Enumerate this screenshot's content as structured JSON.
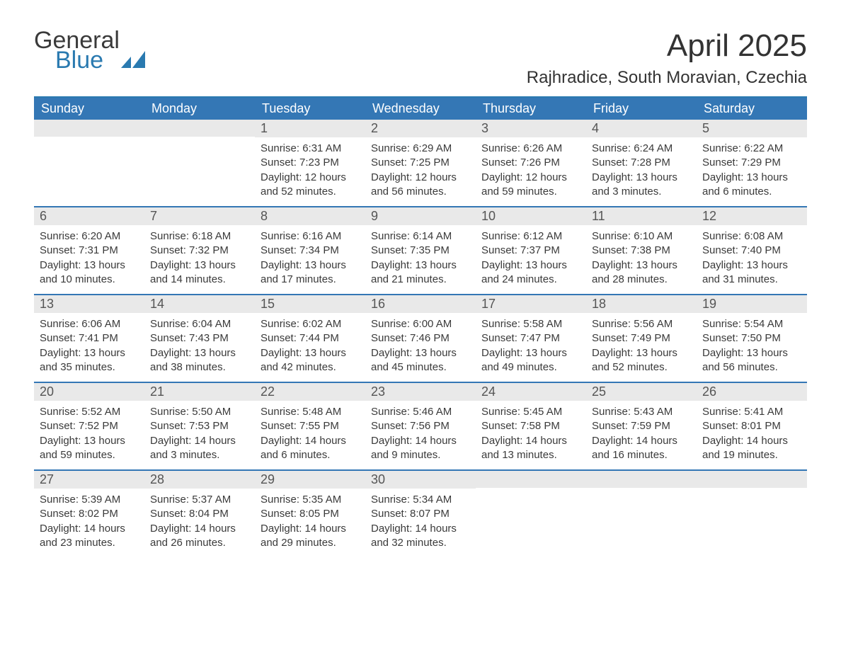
{
  "brand": {
    "general": "General",
    "blue": "Blue"
  },
  "title": {
    "month": "April 2025",
    "location": "Rajhradice, South Moravian, Czechia"
  },
  "colors": {
    "header_bg": "#3477b5",
    "header_text": "#ffffff",
    "rule": "#3477b5",
    "daynum_bg": "#e9e9e9",
    "text": "#3a3a3a",
    "brand_blue": "#2a7ab0"
  },
  "day_names": [
    "Sunday",
    "Monday",
    "Tuesday",
    "Wednesday",
    "Thursday",
    "Friday",
    "Saturday"
  ],
  "weeks": [
    [
      {
        "n": "",
        "sunrise": "",
        "sunset": "",
        "dl1": "",
        "dl2": ""
      },
      {
        "n": "",
        "sunrise": "",
        "sunset": "",
        "dl1": "",
        "dl2": ""
      },
      {
        "n": "1",
        "sunrise": "Sunrise: 6:31 AM",
        "sunset": "Sunset: 7:23 PM",
        "dl1": "Daylight: 12 hours",
        "dl2": "and 52 minutes."
      },
      {
        "n": "2",
        "sunrise": "Sunrise: 6:29 AM",
        "sunset": "Sunset: 7:25 PM",
        "dl1": "Daylight: 12 hours",
        "dl2": "and 56 minutes."
      },
      {
        "n": "3",
        "sunrise": "Sunrise: 6:26 AM",
        "sunset": "Sunset: 7:26 PM",
        "dl1": "Daylight: 12 hours",
        "dl2": "and 59 minutes."
      },
      {
        "n": "4",
        "sunrise": "Sunrise: 6:24 AM",
        "sunset": "Sunset: 7:28 PM",
        "dl1": "Daylight: 13 hours",
        "dl2": "and 3 minutes."
      },
      {
        "n": "5",
        "sunrise": "Sunrise: 6:22 AM",
        "sunset": "Sunset: 7:29 PM",
        "dl1": "Daylight: 13 hours",
        "dl2": "and 6 minutes."
      }
    ],
    [
      {
        "n": "6",
        "sunrise": "Sunrise: 6:20 AM",
        "sunset": "Sunset: 7:31 PM",
        "dl1": "Daylight: 13 hours",
        "dl2": "and 10 minutes."
      },
      {
        "n": "7",
        "sunrise": "Sunrise: 6:18 AM",
        "sunset": "Sunset: 7:32 PM",
        "dl1": "Daylight: 13 hours",
        "dl2": "and 14 minutes."
      },
      {
        "n": "8",
        "sunrise": "Sunrise: 6:16 AM",
        "sunset": "Sunset: 7:34 PM",
        "dl1": "Daylight: 13 hours",
        "dl2": "and 17 minutes."
      },
      {
        "n": "9",
        "sunrise": "Sunrise: 6:14 AM",
        "sunset": "Sunset: 7:35 PM",
        "dl1": "Daylight: 13 hours",
        "dl2": "and 21 minutes."
      },
      {
        "n": "10",
        "sunrise": "Sunrise: 6:12 AM",
        "sunset": "Sunset: 7:37 PM",
        "dl1": "Daylight: 13 hours",
        "dl2": "and 24 minutes."
      },
      {
        "n": "11",
        "sunrise": "Sunrise: 6:10 AM",
        "sunset": "Sunset: 7:38 PM",
        "dl1": "Daylight: 13 hours",
        "dl2": "and 28 minutes."
      },
      {
        "n": "12",
        "sunrise": "Sunrise: 6:08 AM",
        "sunset": "Sunset: 7:40 PM",
        "dl1": "Daylight: 13 hours",
        "dl2": "and 31 minutes."
      }
    ],
    [
      {
        "n": "13",
        "sunrise": "Sunrise: 6:06 AM",
        "sunset": "Sunset: 7:41 PM",
        "dl1": "Daylight: 13 hours",
        "dl2": "and 35 minutes."
      },
      {
        "n": "14",
        "sunrise": "Sunrise: 6:04 AM",
        "sunset": "Sunset: 7:43 PM",
        "dl1": "Daylight: 13 hours",
        "dl2": "and 38 minutes."
      },
      {
        "n": "15",
        "sunrise": "Sunrise: 6:02 AM",
        "sunset": "Sunset: 7:44 PM",
        "dl1": "Daylight: 13 hours",
        "dl2": "and 42 minutes."
      },
      {
        "n": "16",
        "sunrise": "Sunrise: 6:00 AM",
        "sunset": "Sunset: 7:46 PM",
        "dl1": "Daylight: 13 hours",
        "dl2": "and 45 minutes."
      },
      {
        "n": "17",
        "sunrise": "Sunrise: 5:58 AM",
        "sunset": "Sunset: 7:47 PM",
        "dl1": "Daylight: 13 hours",
        "dl2": "and 49 minutes."
      },
      {
        "n": "18",
        "sunrise": "Sunrise: 5:56 AM",
        "sunset": "Sunset: 7:49 PM",
        "dl1": "Daylight: 13 hours",
        "dl2": "and 52 minutes."
      },
      {
        "n": "19",
        "sunrise": "Sunrise: 5:54 AM",
        "sunset": "Sunset: 7:50 PM",
        "dl1": "Daylight: 13 hours",
        "dl2": "and 56 minutes."
      }
    ],
    [
      {
        "n": "20",
        "sunrise": "Sunrise: 5:52 AM",
        "sunset": "Sunset: 7:52 PM",
        "dl1": "Daylight: 13 hours",
        "dl2": "and 59 minutes."
      },
      {
        "n": "21",
        "sunrise": "Sunrise: 5:50 AM",
        "sunset": "Sunset: 7:53 PM",
        "dl1": "Daylight: 14 hours",
        "dl2": "and 3 minutes."
      },
      {
        "n": "22",
        "sunrise": "Sunrise: 5:48 AM",
        "sunset": "Sunset: 7:55 PM",
        "dl1": "Daylight: 14 hours",
        "dl2": "and 6 minutes."
      },
      {
        "n": "23",
        "sunrise": "Sunrise: 5:46 AM",
        "sunset": "Sunset: 7:56 PM",
        "dl1": "Daylight: 14 hours",
        "dl2": "and 9 minutes."
      },
      {
        "n": "24",
        "sunrise": "Sunrise: 5:45 AM",
        "sunset": "Sunset: 7:58 PM",
        "dl1": "Daylight: 14 hours",
        "dl2": "and 13 minutes."
      },
      {
        "n": "25",
        "sunrise": "Sunrise: 5:43 AM",
        "sunset": "Sunset: 7:59 PM",
        "dl1": "Daylight: 14 hours",
        "dl2": "and 16 minutes."
      },
      {
        "n": "26",
        "sunrise": "Sunrise: 5:41 AM",
        "sunset": "Sunset: 8:01 PM",
        "dl1": "Daylight: 14 hours",
        "dl2": "and 19 minutes."
      }
    ],
    [
      {
        "n": "27",
        "sunrise": "Sunrise: 5:39 AM",
        "sunset": "Sunset: 8:02 PM",
        "dl1": "Daylight: 14 hours",
        "dl2": "and 23 minutes."
      },
      {
        "n": "28",
        "sunrise": "Sunrise: 5:37 AM",
        "sunset": "Sunset: 8:04 PM",
        "dl1": "Daylight: 14 hours",
        "dl2": "and 26 minutes."
      },
      {
        "n": "29",
        "sunrise": "Sunrise: 5:35 AM",
        "sunset": "Sunset: 8:05 PM",
        "dl1": "Daylight: 14 hours",
        "dl2": "and 29 minutes."
      },
      {
        "n": "30",
        "sunrise": "Sunrise: 5:34 AM",
        "sunset": "Sunset: 8:07 PM",
        "dl1": "Daylight: 14 hours",
        "dl2": "and 32 minutes."
      },
      {
        "n": "",
        "sunrise": "",
        "sunset": "",
        "dl1": "",
        "dl2": ""
      },
      {
        "n": "",
        "sunrise": "",
        "sunset": "",
        "dl1": "",
        "dl2": ""
      },
      {
        "n": "",
        "sunrise": "",
        "sunset": "",
        "dl1": "",
        "dl2": ""
      }
    ]
  ]
}
